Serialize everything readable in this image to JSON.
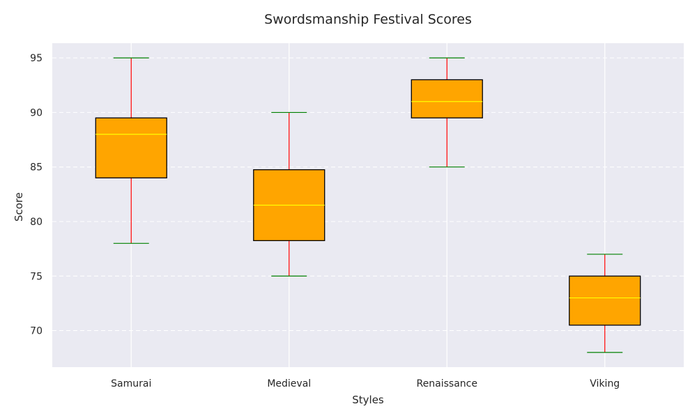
{
  "chart_data": {
    "type": "box",
    "title": "Swordsmanship Festival Scores",
    "xlabel": "Styles",
    "ylabel": "Score",
    "categories": [
      "Samurai",
      "Medieval",
      "Renaissance",
      "Viking"
    ],
    "boxes": [
      {
        "category": "Samurai",
        "whisker_low": 78,
        "q1": 84,
        "median": 88,
        "q3": 89.5,
        "whisker_high": 95
      },
      {
        "category": "Medieval",
        "whisker_low": 75,
        "q1": 78.25,
        "median": 81.5,
        "q3": 84.75,
        "whisker_high": 90
      },
      {
        "category": "Renaissance",
        "whisker_low": 85,
        "q1": 89.5,
        "median": 91,
        "q3": 93,
        "whisker_high": 95
      },
      {
        "category": "Viking",
        "whisker_low": 68,
        "q1": 70.5,
        "median": 73,
        "q3": 75,
        "whisker_high": 77
      }
    ],
    "ylim": [
      66.65,
      96.35
    ],
    "yticks": [
      70,
      75,
      80,
      85,
      90,
      95
    ],
    "grid": true,
    "colors": {
      "plot_background": "#eaeaf2",
      "box_fill": "#ffa500",
      "box_edge": "#000000",
      "median": "#ffff00",
      "whisker": "#ff0000",
      "cap": "#008000",
      "grid": "#ffffff"
    }
  }
}
